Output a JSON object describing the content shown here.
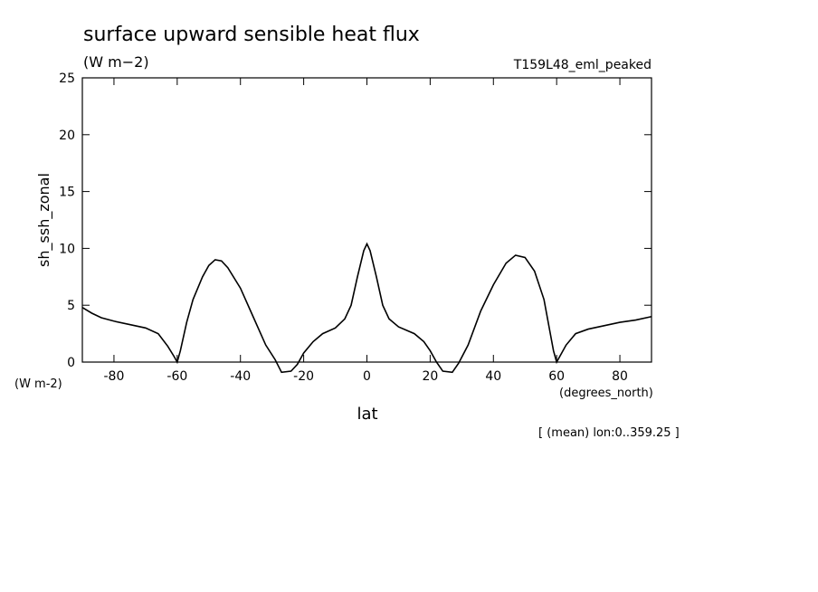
{
  "chart_data": {
    "type": "line",
    "title": "surface upward sensible heat flux",
    "title_units": "(W m−2)",
    "dataset": "T159L48_eml_peaked",
    "ylabel": "sh_ssh_zonal",
    "y_units": "(W m-2)",
    "xlabel": "lat",
    "x_units": "(degrees_north)",
    "note": "[ (mean) lon:0..359.25 ]",
    "x": [
      -90,
      -87,
      -84,
      -80,
      -75,
      -70,
      -66,
      -63,
      -61,
      -60,
      -59,
      -57,
      -55,
      -52,
      -50,
      -48,
      -46,
      -44,
      -40,
      -36,
      -32,
      -29,
      -27,
      -24,
      -22,
      -20,
      -17,
      -14,
      -10,
      -7,
      -5,
      -3,
      -1,
      0,
      1,
      3,
      5,
      7,
      10,
      15,
      18,
      20,
      22,
      24,
      27,
      29,
      32,
      36,
      40,
      44,
      47,
      50,
      53,
      56,
      58,
      59,
      60,
      61,
      63,
      66,
      70,
      75,
      80,
      85,
      90
    ],
    "series": [
      {
        "color": "#000000",
        "values": [
          4.8,
          4.3,
          3.9,
          3.6,
          3.3,
          3.0,
          2.5,
          1.4,
          0.5,
          0,
          1.0,
          3.5,
          5.5,
          7.5,
          8.5,
          9.0,
          8.9,
          8.3,
          6.5,
          4.0,
          1.5,
          0.2,
          -0.9,
          -0.8,
          -0.2,
          0.8,
          1.8,
          2.5,
          3.0,
          3.8,
          5.0,
          7.5,
          9.8,
          10.4,
          9.8,
          7.5,
          5.0,
          3.8,
          3.1,
          2.5,
          1.8,
          1.0,
          0.0,
          -0.8,
          -0.9,
          -0.1,
          1.5,
          4.5,
          6.8,
          8.7,
          9.4,
          9.2,
          8.0,
          5.5,
          2.5,
          1.0,
          0,
          0.5,
          1.5,
          2.5,
          2.9,
          3.2,
          3.5,
          3.7,
          4.0
        ]
      }
    ],
    "xlim": [
      -90,
      90
    ],
    "xticks": [
      -80,
      -60,
      -40,
      -20,
      0,
      20,
      40,
      60,
      80
    ],
    "ylim": [
      0,
      25
    ],
    "yticks": [
      0,
      5,
      10,
      15,
      20,
      25
    ]
  }
}
